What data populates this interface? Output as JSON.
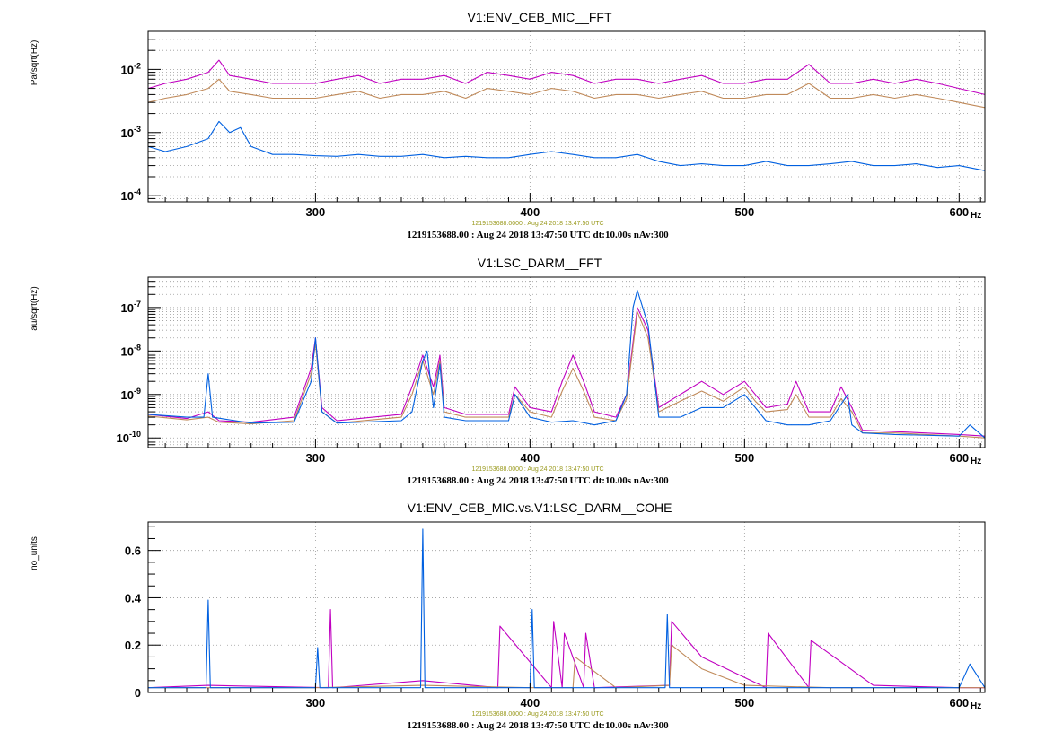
{
  "colors": {
    "magenta": "#c000c0",
    "tan": "#c08a5a",
    "blue": "#0060e0",
    "frame": "#000000",
    "grid": "#9a9a9a",
    "info_small": "#9a9a1e"
  },
  "chart_data": [
    {
      "type": "line",
      "title": "V1:ENV_CEB_MIC__FFT",
      "ylabel": "Pa/sqrt(Hz)",
      "x_unit": "Hz",
      "xlim": [
        222,
        612
      ],
      "ylim": [
        8e-05,
        0.04
      ],
      "yscale": "log",
      "grid": true,
      "x_ticks": [
        300,
        400,
        500,
        600
      ],
      "x_tick_labels": [
        "300",
        "400",
        "500",
        "600"
      ],
      "y_ticks": [
        0.0001,
        0.001,
        0.01
      ],
      "y_tick_base": [
        "10",
        "10",
        "10"
      ],
      "y_tick_exp": [
        "-4",
        "-3",
        "-2"
      ],
      "info_small": "1219153688.0000 : Aug 24 2018 13:47:50 UTC",
      "info_main": "1219153688.00 : Aug 24 2018 13:47:50 UTC dt:10.00s nAv:300",
      "series": [
        {
          "color": "#c000c0",
          "x": [
            222,
            230,
            240,
            250,
            255,
            260,
            270,
            280,
            290,
            300,
            310,
            320,
            330,
            340,
            350,
            360,
            370,
            380,
            390,
            400,
            410,
            420,
            430,
            440,
            450,
            460,
            470,
            480,
            490,
            500,
            510,
            520,
            530,
            540,
            550,
            560,
            570,
            580,
            590,
            600,
            612
          ],
          "y": [
            0.005,
            0.006,
            0.007,
            0.009,
            0.014,
            0.008,
            0.007,
            0.006,
            0.006,
            0.006,
            0.007,
            0.008,
            0.006,
            0.007,
            0.007,
            0.008,
            0.006,
            0.009,
            0.008,
            0.007,
            0.009,
            0.008,
            0.006,
            0.007,
            0.007,
            0.006,
            0.007,
            0.008,
            0.006,
            0.006,
            0.007,
            0.007,
            0.012,
            0.006,
            0.006,
            0.007,
            0.006,
            0.007,
            0.006,
            0.005,
            0.004
          ]
        },
        {
          "color": "#c08a5a",
          "x": [
            222,
            230,
            240,
            250,
            255,
            260,
            270,
            280,
            290,
            300,
            310,
            320,
            330,
            340,
            350,
            360,
            370,
            380,
            390,
            400,
            410,
            420,
            430,
            440,
            450,
            460,
            470,
            480,
            490,
            500,
            510,
            520,
            530,
            540,
            550,
            560,
            570,
            580,
            590,
            600,
            612
          ],
          "y": [
            0.003,
            0.0035,
            0.004,
            0.005,
            0.007,
            0.0045,
            0.004,
            0.0035,
            0.0035,
            0.0035,
            0.004,
            0.0045,
            0.0035,
            0.004,
            0.004,
            0.0045,
            0.0035,
            0.005,
            0.0045,
            0.004,
            0.005,
            0.0045,
            0.0035,
            0.004,
            0.004,
            0.0035,
            0.004,
            0.0045,
            0.0035,
            0.0035,
            0.004,
            0.004,
            0.006,
            0.0035,
            0.0035,
            0.004,
            0.0035,
            0.004,
            0.0035,
            0.003,
            0.0025
          ]
        },
        {
          "color": "#0060e0",
          "x": [
            222,
            230,
            240,
            250,
            255,
            260,
            265,
            270,
            280,
            290,
            300,
            310,
            320,
            330,
            340,
            350,
            360,
            370,
            380,
            390,
            400,
            410,
            420,
            430,
            440,
            450,
            460,
            470,
            480,
            490,
            500,
            510,
            520,
            530,
            540,
            550,
            560,
            570,
            580,
            590,
            600,
            612
          ],
          "y": [
            0.0006,
            0.0005,
            0.0006,
            0.0008,
            0.0015,
            0.001,
            0.0012,
            0.0006,
            0.00045,
            0.00045,
            0.00043,
            0.00042,
            0.00045,
            0.00042,
            0.00042,
            0.00045,
            0.0004,
            0.00042,
            0.0004,
            0.0004,
            0.00045,
            0.0005,
            0.00045,
            0.0004,
            0.0004,
            0.00045,
            0.00035,
            0.0003,
            0.00032,
            0.0003,
            0.0003,
            0.00035,
            0.0003,
            0.0003,
            0.00032,
            0.00035,
            0.0003,
            0.0003,
            0.00032,
            0.00028,
            0.0003,
            0.00025
          ]
        }
      ]
    },
    {
      "type": "line",
      "title": "V1:LSC_DARM__FFT",
      "ylabel": "au/sqrt(Hz)",
      "x_unit": "Hz",
      "xlim": [
        222,
        612
      ],
      "ylim": [
        6e-11,
        5e-07
      ],
      "yscale": "log",
      "grid": true,
      "x_ticks": [
        300,
        400,
        500,
        600
      ],
      "x_tick_labels": [
        "300",
        "400",
        "500",
        "600"
      ],
      "y_ticks": [
        1e-10,
        1e-09,
        1e-08,
        1e-07
      ],
      "y_tick_base": [
        "10",
        "10",
        "10",
        "10"
      ],
      "y_tick_exp": [
        "-10",
        "-9",
        "-8",
        "-7"
      ],
      "info_small": "1219153688.0000 : Aug 24 2018 13:47:50 UTC",
      "info_main": "1219153688.00 : Aug 24 2018 13:47:50 UTC dt:10.00s nAv:300",
      "series": [
        {
          "color": "#c000c0",
          "x": [
            222,
            240,
            250,
            255,
            270,
            290,
            298,
            300,
            303,
            310,
            340,
            345,
            350,
            355,
            358,
            360,
            370,
            390,
            393,
            400,
            410,
            415,
            420,
            425,
            430,
            440,
            445,
            450,
            455,
            460,
            470,
            480,
            490,
            500,
            505,
            510,
            520,
            524,
            530,
            540,
            545,
            550,
            555,
            570,
            600,
            612
          ],
          "y": [
            3.5e-10,
            2.8e-10,
            4e-10,
            2.5e-10,
            2.3e-10,
            3e-10,
            4e-09,
            2e-08,
            5e-10,
            2.5e-10,
            3.5e-10,
            1.5e-09,
            8e-09,
            1.5e-09,
            8e-09,
            5e-10,
            3.5e-10,
            3.5e-10,
            1.5e-09,
            5e-10,
            4e-10,
            2e-09,
            8e-09,
            2e-09,
            4e-10,
            3e-10,
            1e-09,
            1e-07,
            3e-08,
            5e-10,
            1e-09,
            2e-09,
            1e-09,
            2e-09,
            1e-09,
            5e-10,
            6e-10,
            2e-09,
            4e-10,
            4e-10,
            1.5e-09,
            5e-10,
            1.5e-10,
            1.4e-10,
            1.2e-10,
            1.1e-10
          ]
        },
        {
          "color": "#c08a5a",
          "x": [
            222,
            240,
            250,
            255,
            270,
            290,
            298,
            300,
            303,
            310,
            340,
            345,
            350,
            355,
            358,
            360,
            370,
            390,
            393,
            400,
            410,
            415,
            420,
            425,
            430,
            440,
            445,
            450,
            455,
            460,
            470,
            480,
            490,
            500,
            505,
            510,
            520,
            524,
            530,
            540,
            545,
            550,
            555,
            570,
            600,
            612
          ],
          "y": [
            3.2e-10,
            2.6e-10,
            3e-10,
            2.3e-10,
            2.1e-10,
            2.5e-10,
            3e-09,
            1.5e-08,
            4e-10,
            2.2e-10,
            3e-10,
            1e-09,
            6e-09,
            1e-09,
            6e-09,
            4e-10,
            3e-10,
            3e-10,
            1e-09,
            4e-10,
            3e-10,
            1.2e-09,
            4e-09,
            1.2e-09,
            3e-10,
            2.5e-10,
            8e-10,
            8e-08,
            2e-08,
            4e-10,
            7e-10,
            1.2e-09,
            7e-10,
            1.5e-09,
            7e-10,
            4e-10,
            4.5e-10,
            1e-09,
            3e-10,
            3e-10,
            8e-10,
            4e-10,
            1.3e-10,
            1.3e-10,
            1.1e-10,
            1e-10
          ]
        },
        {
          "color": "#0060e0",
          "x": [
            222,
            240,
            248,
            250,
            252,
            270,
            290,
            298,
            300,
            303,
            310,
            340,
            345,
            350,
            352,
            355,
            358,
            360,
            370,
            390,
            393,
            400,
            410,
            420,
            430,
            440,
            445,
            448,
            450,
            455,
            460,
            470,
            480,
            490,
            500,
            505,
            510,
            520,
            530,
            540,
            548,
            550,
            555,
            570,
            600,
            605,
            612
          ],
          "y": [
            3.5e-10,
            3e-10,
            3e-10,
            3e-09,
            3e-10,
            2.2e-10,
            2.3e-10,
            2e-09,
            2e-08,
            4e-10,
            2.2e-10,
            2.5e-10,
            4e-10,
            6e-09,
            1e-08,
            5e-10,
            5e-09,
            3e-10,
            2.5e-10,
            2.5e-10,
            1e-09,
            3e-10,
            2.3e-10,
            2.5e-10,
            2e-10,
            2.5e-10,
            1e-09,
            1e-07,
            2.5e-07,
            4e-08,
            3e-10,
            3e-10,
            5e-10,
            5e-10,
            1e-09,
            5e-10,
            2.5e-10,
            2e-10,
            2e-10,
            2.5e-10,
            1e-09,
            2e-10,
            1.3e-10,
            1.2e-10,
            1.1e-10,
            2e-10,
            1e-10
          ]
        }
      ]
    },
    {
      "type": "line",
      "title": "V1:ENV_CEB_MIC.vs.V1:LSC_DARM__COHE",
      "ylabel": "no_units",
      "x_unit": "Hz",
      "xlim": [
        222,
        612
      ],
      "ylim": [
        0,
        0.72
      ],
      "yscale": "linear",
      "grid": true,
      "x_ticks": [
        300,
        400,
        500,
        600
      ],
      "x_tick_labels": [
        "300",
        "400",
        "500",
        "600"
      ],
      "y_ticks": [
        0,
        0.2,
        0.4,
        0.6
      ],
      "y_tick_labels": [
        "0",
        "0.2",
        "0.4",
        "0.6"
      ],
      "info_small": "1219153688.0000 : Aug 24 2018 13:47:50 UTC",
      "info_main": "1219153688.00 : Aug 24 2018 13:47:50 UTC dt:10.00s nAv:300",
      "series": [
        {
          "color": "#c000c0",
          "x": [
            222,
            250,
            306,
            307,
            308,
            350,
            385,
            386,
            410,
            411,
            415,
            416,
            425,
            426,
            430,
            465,
            466,
            480,
            510,
            511,
            530,
            531,
            560,
            600,
            612
          ],
          "y": [
            0.02,
            0.03,
            0.02,
            0.35,
            0.02,
            0.05,
            0.02,
            0.28,
            0.02,
            0.3,
            0.02,
            0.25,
            0.02,
            0.25,
            0.02,
            0.03,
            0.3,
            0.15,
            0.02,
            0.25,
            0.02,
            0.22,
            0.03,
            0.02,
            0.02
          ]
        },
        {
          "color": "#c08a5a",
          "x": [
            222,
            300,
            350,
            400,
            420,
            421,
            440,
            465,
            466,
            480,
            500,
            540,
            600,
            612
          ],
          "y": [
            0.02,
            0.02,
            0.03,
            0.02,
            0.02,
            0.15,
            0.02,
            0.03,
            0.2,
            0.1,
            0.03,
            0.02,
            0.02,
            0.02
          ]
        },
        {
          "color": "#0060e0",
          "x": [
            222,
            249,
            250,
            251,
            300,
            301,
            302,
            349,
            350,
            351,
            400,
            401,
            402,
            463,
            464,
            465,
            500,
            540,
            600,
            605,
            612
          ],
          "y": [
            0.02,
            0.02,
            0.39,
            0.02,
            0.02,
            0.19,
            0.02,
            0.02,
            0.69,
            0.02,
            0.02,
            0.35,
            0.02,
            0.02,
            0.33,
            0.02,
            0.02,
            0.02,
            0.02,
            0.12,
            0.02
          ]
        }
      ]
    }
  ]
}
